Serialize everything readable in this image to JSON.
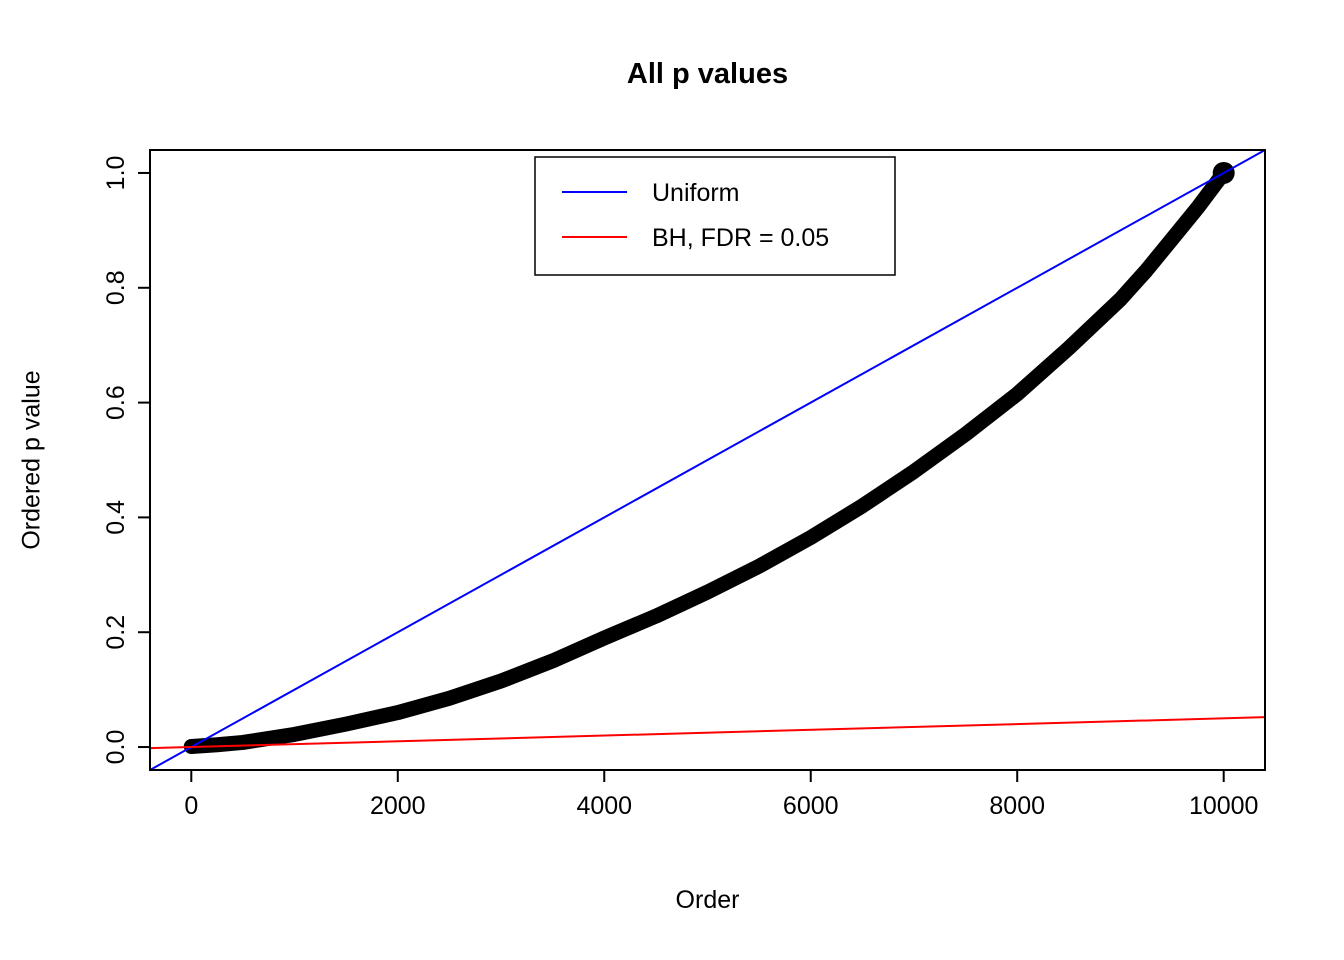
{
  "title": "All p values",
  "chart_data": {
    "type": "scatter",
    "title": "All p values",
    "xlabel": "Order",
    "ylabel": "Ordered p value",
    "xlim": [
      -400,
      10400
    ],
    "ylim": [
      -0.04,
      1.04
    ],
    "grid": false,
    "x_ticks": [
      0,
      2000,
      4000,
      6000,
      8000,
      10000
    ],
    "x_tick_labels": [
      "0",
      "2000",
      "4000",
      "6000",
      "8000",
      "10000"
    ],
    "y_ticks": [
      0.0,
      0.2,
      0.4,
      0.6,
      0.8,
      1.0
    ],
    "y_tick_labels": [
      "0.0",
      "0.2",
      "0.4",
      "0.6",
      "0.8",
      "1.0"
    ],
    "legend": {
      "position": "top-center-inside",
      "entries": [
        {
          "label": "Uniform",
          "color": "#0000FF"
        },
        {
          "label": "BH, FDR = 0.05",
          "color": "#FF0000"
        }
      ]
    },
    "series": [
      {
        "name": "ordered-p-values",
        "type": "thick-curve",
        "color": "#000000",
        "x": [
          0,
          250,
          500,
          1000,
          1500,
          2000,
          2500,
          3000,
          3500,
          4000,
          4500,
          5000,
          5500,
          6000,
          6500,
          7000,
          7500,
          8000,
          8500,
          9000,
          9250,
          9500,
          9750,
          10000
        ],
        "y": [
          0.001,
          0.004,
          0.008,
          0.022,
          0.04,
          0.06,
          0.085,
          0.115,
          0.15,
          0.19,
          0.228,
          0.27,
          0.315,
          0.365,
          0.42,
          0.48,
          0.545,
          0.615,
          0.695,
          0.78,
          0.83,
          0.885,
          0.94,
          1.0
        ]
      },
      {
        "name": "Uniform",
        "type": "abline",
        "color": "#0000FF",
        "intercept": 0,
        "slope": 0.0001
      },
      {
        "name": "BH, FDR = 0.05",
        "type": "abline",
        "color": "#FF0000",
        "intercept": 0,
        "slope": 5e-06
      }
    ]
  },
  "colors": {
    "uniform_line": "#0000FF",
    "bh_line": "#FF0000",
    "points": "#000000",
    "axis": "#000000",
    "background": "#FFFFFF"
  }
}
